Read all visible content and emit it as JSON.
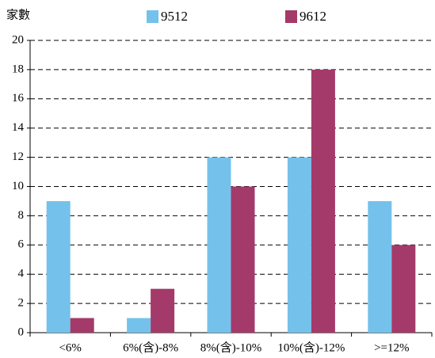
{
  "chart_data": {
    "type": "bar",
    "y_label": "家數",
    "categories": [
      "<6%",
      "6%(含)-8%",
      "8%(含)-10%",
      "10%(含)-12%",
      ">=12%"
    ],
    "series": [
      {
        "name": "9512",
        "color": "#74c2eb",
        "values": [
          9,
          1,
          12,
          12,
          9
        ]
      },
      {
        "name": "9612",
        "color": "#a33a6a",
        "values": [
          1,
          3,
          10,
          18,
          6
        ]
      }
    ],
    "ylim": [
      0,
      20
    ],
    "yticks": [
      0,
      2,
      4,
      6,
      8,
      10,
      12,
      14,
      16,
      18,
      20
    ],
    "grid": true
  }
}
